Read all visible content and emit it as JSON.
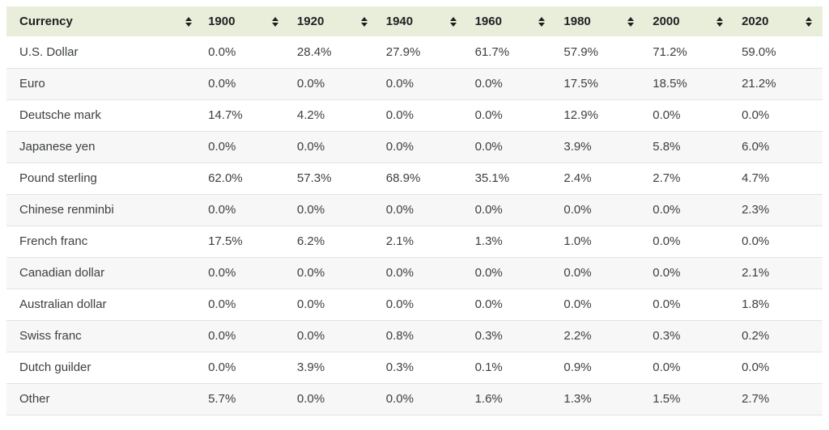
{
  "icons": {
    "sort": "sort-up-down-arrows-icon"
  },
  "colors": {
    "header_bg": "#e8eeda",
    "row_alt_bg": "#f7f7f7",
    "row_border": "#e3e3e3",
    "header_text": "#202124",
    "body_text": "#3c4043"
  },
  "table": {
    "columns": [
      {
        "id": "currency",
        "label": "Currency"
      },
      {
        "id": "1900",
        "label": "1900"
      },
      {
        "id": "1920",
        "label": "1920"
      },
      {
        "id": "1940",
        "label": "1940"
      },
      {
        "id": "1960",
        "label": "1960"
      },
      {
        "id": "1980",
        "label": "1980"
      },
      {
        "id": "2000",
        "label": "2000"
      },
      {
        "id": "2020",
        "label": "2020"
      }
    ],
    "rows": [
      {
        "currency": "U.S. Dollar",
        "values": [
          "0.0%",
          "28.4%",
          "27.9%",
          "61.7%",
          "57.9%",
          "71.2%",
          "59.0%"
        ]
      },
      {
        "currency": "Euro",
        "values": [
          "0.0%",
          "0.0%",
          "0.0%",
          "0.0%",
          "17.5%",
          "18.5%",
          "21.2%"
        ]
      },
      {
        "currency": "Deutsche mark",
        "values": [
          "14.7%",
          "4.2%",
          "0.0%",
          "0.0%",
          "12.9%",
          "0.0%",
          "0.0%"
        ]
      },
      {
        "currency": "Japanese yen",
        "values": [
          "0.0%",
          "0.0%",
          "0.0%",
          "0.0%",
          "3.9%",
          "5.8%",
          "6.0%"
        ]
      },
      {
        "currency": "Pound sterling",
        "values": [
          "62.0%",
          "57.3%",
          "68.9%",
          "35.1%",
          "2.4%",
          "2.7%",
          "4.7%"
        ]
      },
      {
        "currency": "Chinese renminbi",
        "values": [
          "0.0%",
          "0.0%",
          "0.0%",
          "0.0%",
          "0.0%",
          "0.0%",
          "2.3%"
        ]
      },
      {
        "currency": "French franc",
        "values": [
          "17.5%",
          "6.2%",
          "2.1%",
          "1.3%",
          "1.0%",
          "0.0%",
          "0.0%"
        ]
      },
      {
        "currency": "Canadian dollar",
        "values": [
          "0.0%",
          "0.0%",
          "0.0%",
          "0.0%",
          "0.0%",
          "0.0%",
          "2.1%"
        ]
      },
      {
        "currency": "Australian dollar",
        "values": [
          "0.0%",
          "0.0%",
          "0.0%",
          "0.0%",
          "0.0%",
          "0.0%",
          "1.8%"
        ]
      },
      {
        "currency": "Swiss franc",
        "values": [
          "0.0%",
          "0.0%",
          "0.8%",
          "0.3%",
          "2.2%",
          "0.3%",
          "0.2%"
        ]
      },
      {
        "currency": "Dutch guilder",
        "values": [
          "0.0%",
          "3.9%",
          "0.3%",
          "0.1%",
          "0.9%",
          "0.0%",
          "0.0%"
        ]
      },
      {
        "currency": "Other",
        "values": [
          "5.7%",
          "0.0%",
          "0.0%",
          "1.6%",
          "1.3%",
          "1.5%",
          "2.7%"
        ]
      }
    ]
  }
}
